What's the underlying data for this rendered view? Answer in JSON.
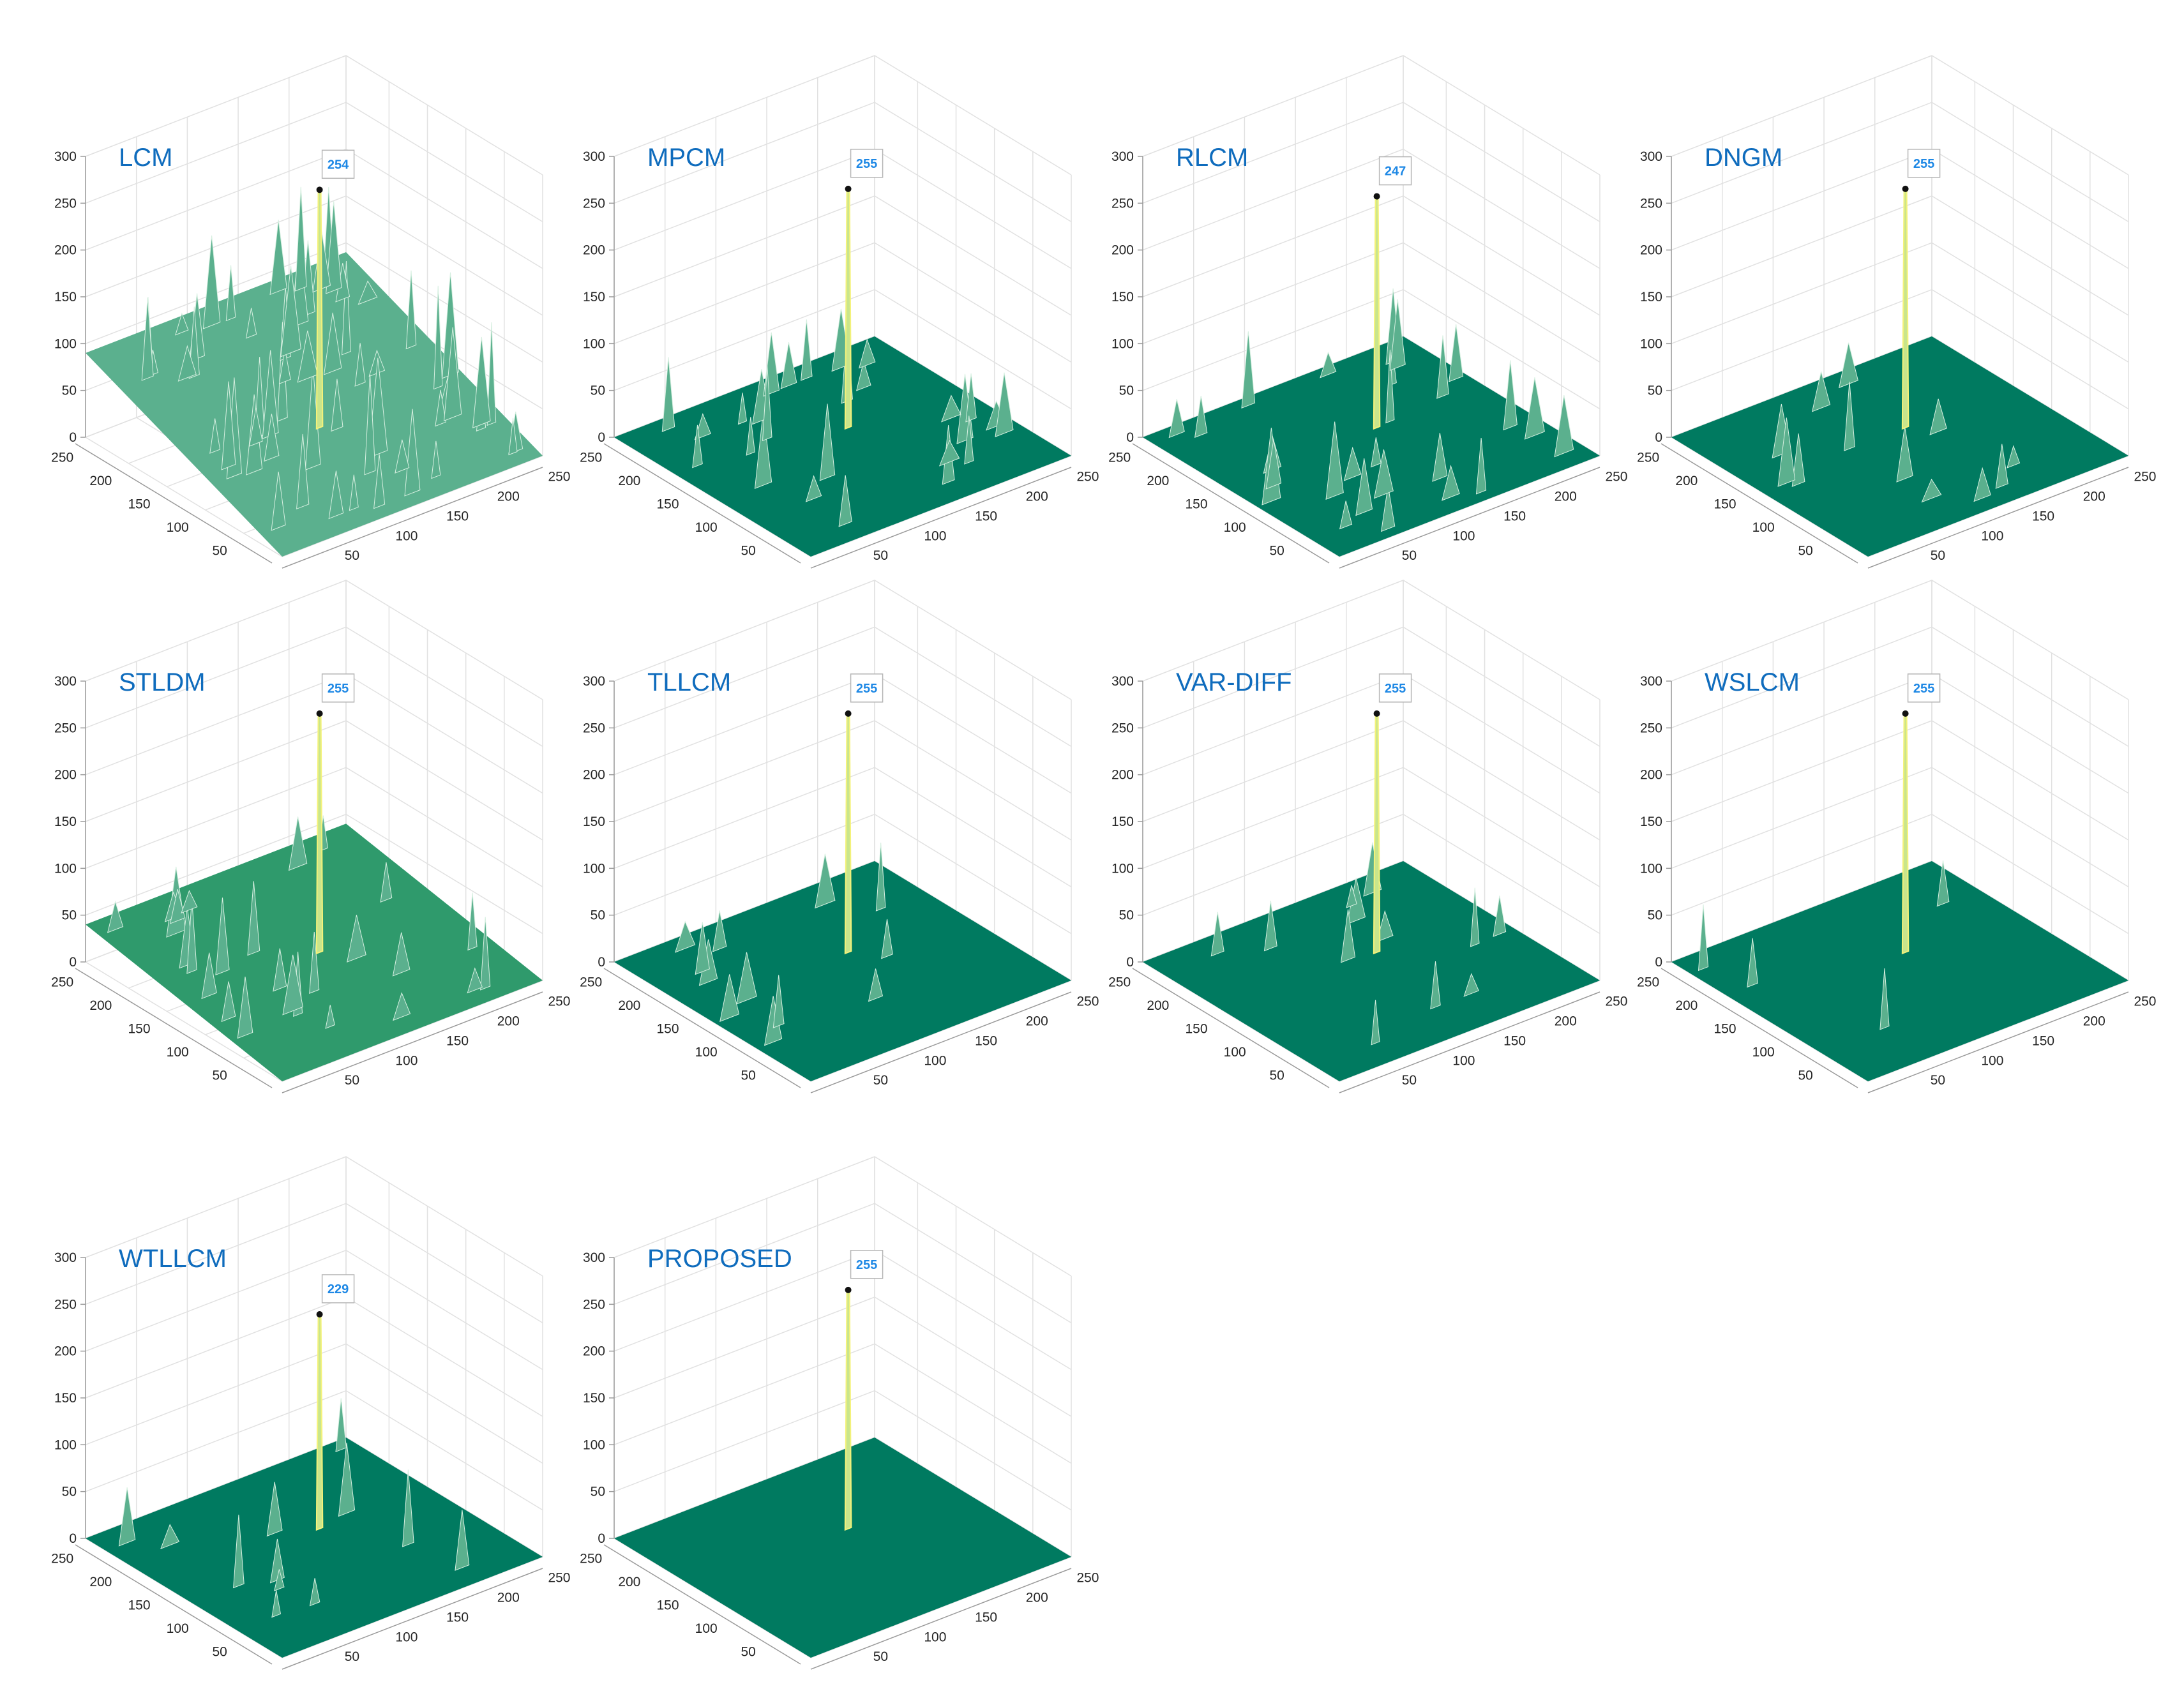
{
  "colors": {
    "floor": "#007a60",
    "floor_light": "#2f9a6c",
    "surface_mid": "#5bb08e",
    "surface_high": "#c9e58c",
    "peak": "#f4f27a",
    "grid": "#e1e1e1",
    "axis": "#9a9a9a",
    "title": "#0f6cbd",
    "datatip_text": "#1e88e5"
  },
  "axes": {
    "z_ticks": [
      "0",
      "50",
      "100",
      "150",
      "200",
      "250",
      "300"
    ],
    "x_ticks": [
      "50",
      "100",
      "150",
      "200",
      "250"
    ],
    "y_ticks": [
      "50",
      "100",
      "150",
      "200",
      "250"
    ]
  },
  "chart_data": [
    {
      "type": "surface",
      "title": "LCM",
      "peak_value": 254,
      "datatip": "254",
      "zlim": [
        0,
        300
      ],
      "xlim": [
        0,
        256
      ],
      "ylim": [
        0,
        256
      ],
      "background_level": 90,
      "clutter": "heavy"
    },
    {
      "type": "surface",
      "title": "MPCM",
      "peak_value": 255,
      "datatip": "255",
      "zlim": [
        0,
        300
      ],
      "xlim": [
        0,
        256
      ],
      "ylim": [
        0,
        256
      ],
      "background_level": 0,
      "clutter": "medium"
    },
    {
      "type": "surface",
      "title": "RLCM",
      "peak_value": 247,
      "datatip": "247",
      "zlim": [
        0,
        300
      ],
      "xlim": [
        0,
        256
      ],
      "ylim": [
        0,
        256
      ],
      "background_level": 0,
      "clutter": "medium"
    },
    {
      "type": "surface",
      "title": "DNGM",
      "peak_value": 255,
      "datatip": "255",
      "zlim": [
        0,
        300
      ],
      "xlim": [
        0,
        256
      ],
      "ylim": [
        0,
        256
      ],
      "background_level": 0,
      "clutter": "low"
    },
    {
      "type": "surface",
      "title": "STLDM",
      "peak_value": 255,
      "datatip": "255",
      "zlim": [
        0,
        300
      ],
      "xlim": [
        0,
        256
      ],
      "ylim": [
        0,
        256
      ],
      "background_level": 40,
      "clutter": "medium"
    },
    {
      "type": "surface",
      "title": "TLLCM",
      "peak_value": 255,
      "datatip": "255",
      "zlim": [
        0,
        300
      ],
      "xlim": [
        0,
        256
      ],
      "ylim": [
        0,
        256
      ],
      "background_level": 0,
      "clutter": "low"
    },
    {
      "type": "surface",
      "title": "VAR-DIFF",
      "peak_value": 255,
      "datatip": "255",
      "zlim": [
        0,
        300
      ],
      "xlim": [
        0,
        256
      ],
      "ylim": [
        0,
        256
      ],
      "background_level": 0,
      "clutter": "low"
    },
    {
      "type": "surface",
      "title": "WSLCM",
      "peak_value": 255,
      "datatip": "255",
      "zlim": [
        0,
        300
      ],
      "xlim": [
        0,
        256
      ],
      "ylim": [
        0,
        256
      ],
      "background_level": 0,
      "clutter": "minimal"
    },
    {
      "type": "surface",
      "title": "WTLLCM",
      "peak_value": 229,
      "datatip": "229",
      "zlim": [
        0,
        300
      ],
      "xlim": [
        0,
        256
      ],
      "ylim": [
        0,
        256
      ],
      "background_level": 0,
      "clutter": "low"
    },
    {
      "type": "surface",
      "title": "PROPOSED",
      "peak_value": 255,
      "datatip": "255",
      "zlim": [
        0,
        300
      ],
      "xlim": [
        0,
        256
      ],
      "ylim": [
        0,
        256
      ],
      "background_level": 0,
      "clutter": "none"
    }
  ]
}
